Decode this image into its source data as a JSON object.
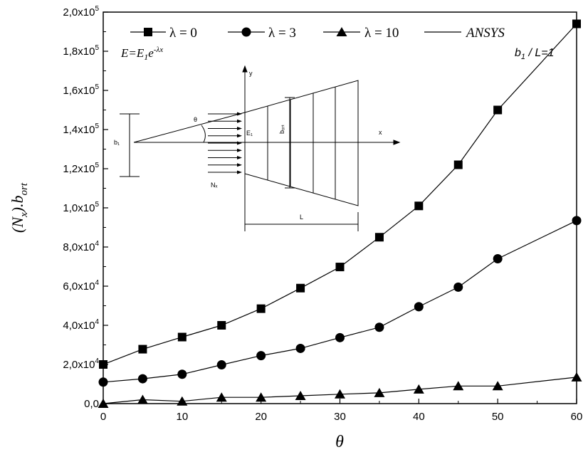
{
  "chart_data": {
    "type": "line",
    "x": [
      0,
      5,
      10,
      15,
      20,
      25,
      30,
      35,
      40,
      45,
      50,
      60
    ],
    "series": [
      {
        "name": "λ = 0",
        "marker": "square",
        "values": [
          20000,
          27800,
          34000,
          40000,
          48500,
          59000,
          69800,
          85000,
          101000,
          122000,
          150000,
          194000
        ]
      },
      {
        "name": "λ = 3",
        "marker": "circle",
        "values": [
          11000,
          12700,
          15000,
          19800,
          24500,
          28200,
          33700,
          39000,
          49500,
          59500,
          74000,
          93500
        ]
      },
      {
        "name": "λ = 10",
        "marker": "triangle",
        "values": [
          0,
          2000,
          1200,
          3200,
          3200,
          4000,
          4800,
          5500,
          7300,
          9000,
          9000,
          13500
        ]
      }
    ],
    "legend_extra": "ANSYS",
    "xlabel": "θ",
    "ylabel_main": "(N",
    "ylabel_sub1": "x",
    "ylabel_mid": ").b",
    "ylabel_sub2": "ort",
    "xlim": [
      0,
      60
    ],
    "ylim": [
      0,
      200000
    ],
    "xticks": [
      0,
      10,
      20,
      30,
      40,
      50,
      60
    ],
    "yticks": [
      0,
      20000,
      40000,
      60000,
      80000,
      100000,
      120000,
      140000,
      160000,
      180000,
      200000
    ],
    "ytick_labels": [
      {
        "base": "0,0",
        "exp": ""
      },
      {
        "base": "2,0x10",
        "exp": "4"
      },
      {
        "base": "4,0x10",
        "exp": "4"
      },
      {
        "base": "6,0x10",
        "exp": "4"
      },
      {
        "base": "8,0x10",
        "exp": "4"
      },
      {
        "base": "1,0x10",
        "exp": "5"
      },
      {
        "base": "1,2x10",
        "exp": "5"
      },
      {
        "base": "1,4x10",
        "exp": "5"
      },
      {
        "base": "1,6x10",
        "exp": "5"
      },
      {
        "base": "1,8x10",
        "exp": "5"
      },
      {
        "base": "2,0x10",
        "exp": "5"
      }
    ],
    "grid": false,
    "legend_position": "top",
    "annotations": {
      "formula_base": "E=E",
      "formula_sub": "1",
      "formula_e": "e",
      "formula_exp": "-λx",
      "ratio_b": "b",
      "ratio_sub": "1",
      "ratio_rest": " / L=1"
    },
    "inset": {
      "label_y": "y",
      "label_x": "x",
      "label_theta": "θ",
      "label_b1": "b₁",
      "label_E1": "E₁",
      "label_bort": "bₒᵣₜ",
      "label_Nx": "Nₓ",
      "label_L": "L"
    }
  }
}
